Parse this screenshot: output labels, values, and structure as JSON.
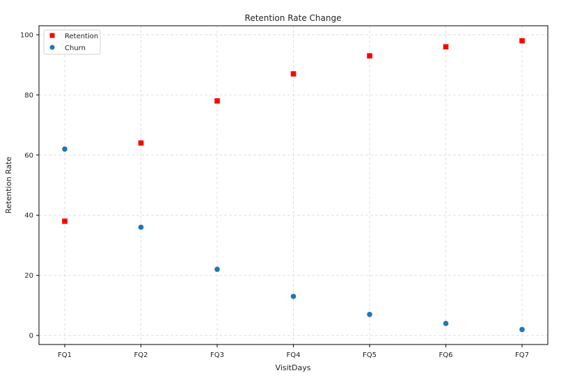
{
  "chart_data": {
    "type": "scatter",
    "title": "Retention Rate Change",
    "xlabel": "VisitDays",
    "ylabel": "Retention Rate",
    "categories": [
      "FQ1",
      "FQ2",
      "FQ3",
      "FQ4",
      "FQ5",
      "FQ6",
      "FQ7"
    ],
    "ylim": [
      -3,
      103
    ],
    "yticks": [
      0,
      20,
      40,
      60,
      80,
      100
    ],
    "grid": true,
    "legend_position": "top-left",
    "series": [
      {
        "name": "Retention",
        "marker": "square",
        "color": "#ff0000",
        "values": [
          38,
          64,
          78,
          87,
          93,
          96,
          98
        ]
      },
      {
        "name": "Churn",
        "marker": "circle",
        "color": "#1f77b4",
        "values": [
          62,
          36,
          22,
          13,
          7,
          4,
          2
        ]
      }
    ]
  }
}
